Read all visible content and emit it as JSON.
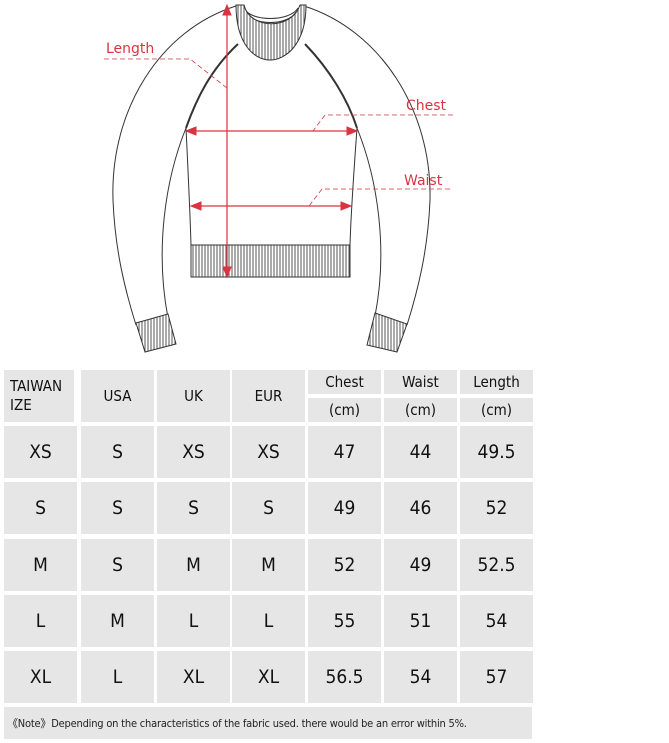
{
  "diagram": {
    "labels": {
      "length": "Length",
      "chest": "Chest",
      "waist": "Waist"
    },
    "accent_color": "#d9343f"
  },
  "table": {
    "headers": [
      {
        "label": "TAIWAN IZE",
        "unit": ""
      },
      {
        "label": "USA",
        "unit": ""
      },
      {
        "label": "UK",
        "unit": ""
      },
      {
        "label": "EUR",
        "unit": ""
      },
      {
        "label": "Chest",
        "unit": "(cm)"
      },
      {
        "label": "Waist",
        "unit": "(cm)"
      },
      {
        "label": "Length",
        "unit": "(cm)"
      }
    ],
    "rows": [
      [
        "XS",
        "S",
        "XS",
        "XS",
        "47",
        "44",
        "49.5"
      ],
      [
        "S",
        "S",
        "S",
        "S",
        "49",
        "46",
        "52"
      ],
      [
        "M",
        "S",
        "M",
        "M",
        "52",
        "49",
        "52.5"
      ],
      [
        "L",
        "M",
        "L",
        "L",
        "55",
        "51",
        "54"
      ],
      [
        "XL",
        "L",
        "XL",
        "XL",
        "56.5",
        "54",
        "57"
      ]
    ],
    "note": "《Note》Depending on the characteristics of the fabric used. there would be an error within 5%."
  }
}
